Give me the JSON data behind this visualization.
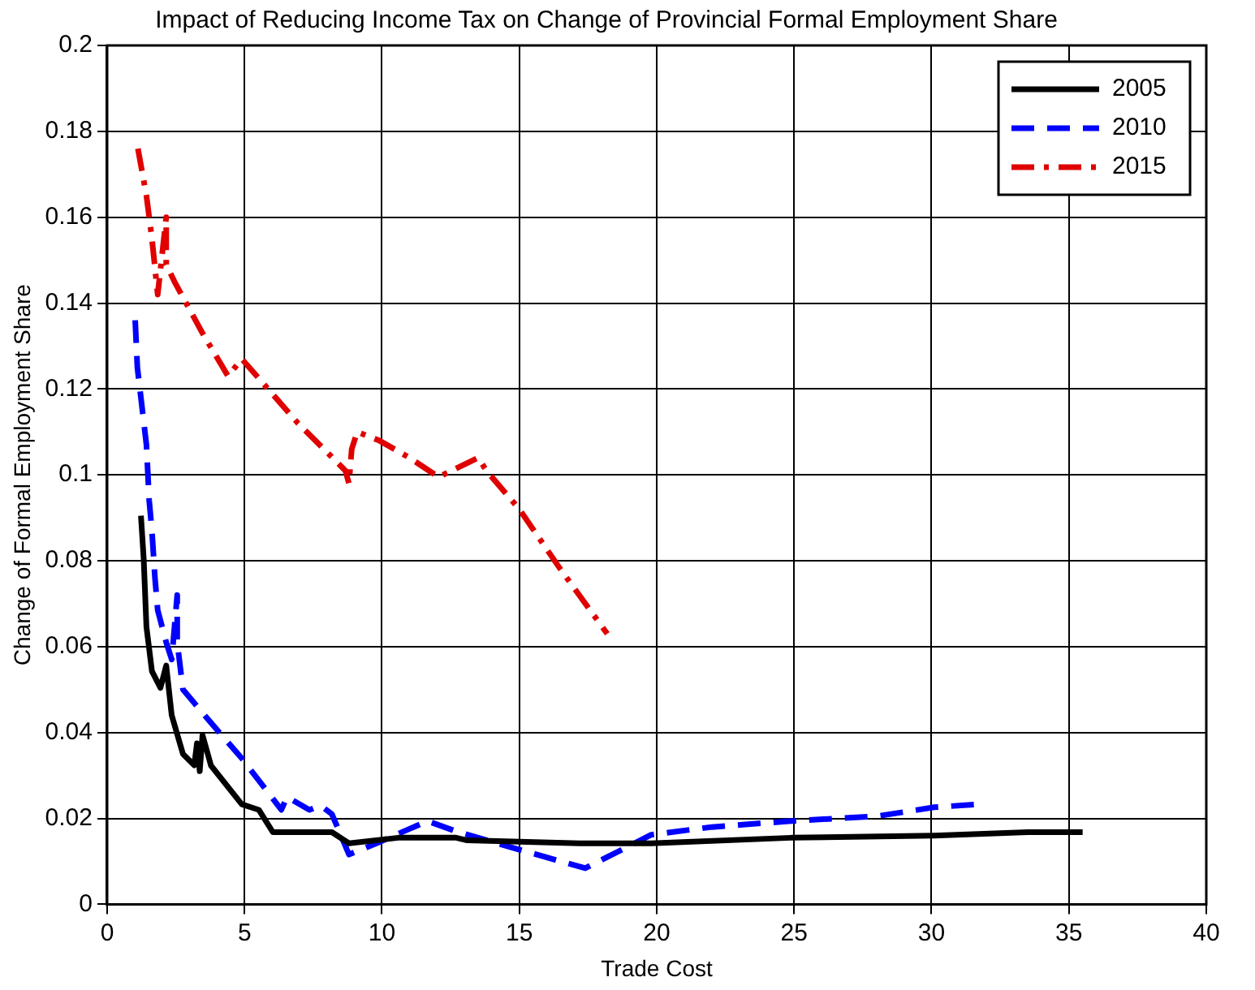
{
  "chart_data": {
    "type": "line",
    "title": "Impact of Reducing Income Tax on Change of Provincial Formal Employment Share",
    "xlabel": "Trade Cost",
    "ylabel": "Change of Formal Employment Share",
    "xlim": [
      0,
      40
    ],
    "xticks": [
      0,
      5,
      10,
      15,
      20,
      25,
      30,
      35,
      40
    ],
    "ylim": [
      0,
      0.2
    ],
    "yticks": [
      0,
      0.02,
      0.04,
      0.06,
      0.08,
      0.1,
      0.12,
      0.14,
      0.16,
      0.18,
      0.2
    ],
    "grid": true,
    "legend": "top right",
    "marker": "none",
    "series": [
      {
        "name": "2005",
        "color": "#000000",
        "line_style": "solid",
        "x": [
          1.23,
          1.33,
          1.43,
          1.63,
          1.94,
          2.15,
          2.35,
          2.76,
          3.17,
          3.27,
          3.37,
          3.47,
          3.78,
          4.9,
          5.52,
          6.03,
          8.18,
          8.8,
          10.6,
          12.7,
          13.1,
          17.2,
          19.8,
          24.9,
          30.1,
          33.5,
          35.5
        ],
        "values": [
          0.0905,
          0.0805,
          0.0646,
          0.0543,
          0.0504,
          0.0556,
          0.044,
          0.035,
          0.0324,
          0.0375,
          0.031,
          0.0394,
          0.0323,
          0.0233,
          0.022,
          0.0168,
          0.0168,
          0.0142,
          0.0155,
          0.0155,
          0.0149,
          0.0142,
          0.0142,
          0.0155,
          0.016,
          0.0168,
          0.0168
        ]
      },
      {
        "name": "2010",
        "color": "#0000ff",
        "line_style": "dashed",
        "x": [
          1.02,
          1.1,
          1.43,
          1.53,
          1.63,
          1.74,
          1.84,
          2.15,
          2.35,
          2.55,
          2.55,
          2.76,
          3.68,
          4.9,
          6.34,
          6.54,
          7.36,
          7.77,
          8.18,
          8.8,
          9.8,
          11.66,
          12.7,
          13.5,
          14.9,
          17.4,
          19.8,
          22,
          24.9,
          28,
          30.1,
          31.7
        ],
        "values": [
          0.136,
          0.125,
          0.107,
          0.094,
          0.087,
          0.076,
          0.0685,
          0.061,
          0.057,
          0.072,
          0.061,
          0.05,
          0.043,
          0.034,
          0.022,
          0.025,
          0.022,
          0.023,
          0.021,
          0.0116,
          0.0142,
          0.0194,
          0.017,
          0.0155,
          0.0129,
          0.0084,
          0.0162,
          0.018,
          0.0194,
          0.0205,
          0.0226,
          0.0233
        ]
      },
      {
        "name": "2015",
        "color": "#e00000",
        "line_style": "dashdot",
        "x": [
          1.12,
          1.43,
          1.63,
          1.84,
          2.15,
          2.15,
          2.45,
          3.47,
          4.4,
          4.9,
          6.95,
          8.67,
          8.8,
          8.9,
          9.1,
          9.9,
          11,
          12.06,
          13.5,
          13.8,
          15,
          16.5,
          18.2
        ],
        "values": [
          0.176,
          0.165,
          0.155,
          0.142,
          0.16,
          0.149,
          0.145,
          0.133,
          0.123,
          0.127,
          0.112,
          0.101,
          0.098,
          0.106,
          0.11,
          0.108,
          0.104,
          0.0995,
          0.104,
          0.101,
          0.092,
          0.078,
          0.063
        ]
      }
    ]
  }
}
